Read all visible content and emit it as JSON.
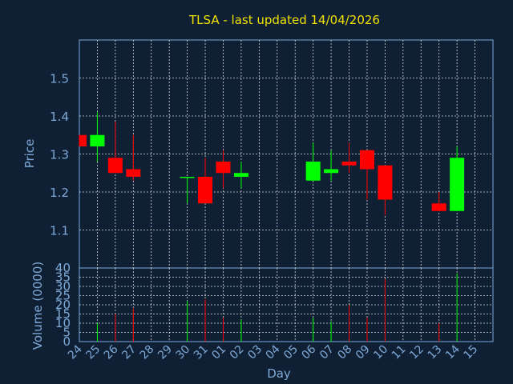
{
  "chart_data": {
    "type": "candlestick",
    "title": "TLSA - last updated 14/04/2026",
    "xlabel": "Day",
    "price_panel": {
      "ylabel": "Price",
      "ylim": [
        1.0,
        1.6
      ],
      "yticks": [
        "1.1",
        "1.2",
        "1.3",
        "1.4",
        "1.5"
      ]
    },
    "volume_panel": {
      "ylabel": "Volume (0000)",
      "ylim": [
        0,
        40
      ],
      "yticks": [
        "0",
        "5",
        "10",
        "15",
        "20",
        "25",
        "30",
        "35",
        "40"
      ]
    },
    "x_ticks": [
      "24",
      "25",
      "26",
      "27",
      "28",
      "29",
      "30",
      "31",
      "01",
      "02",
      "03",
      "04",
      "05",
      "06",
      "07",
      "08",
      "09",
      "10",
      "11",
      "12",
      "13",
      "14",
      "15"
    ],
    "grid": true,
    "colors": {
      "up": "#00ff00",
      "down": "#ff0000",
      "background": "#0f2035",
      "title": "#f0e000",
      "axis_text": "#7ea9d6",
      "grid": "#d8d8d8"
    },
    "candles": [
      {
        "day": "24",
        "open": 1.35,
        "high": 1.35,
        "low": 1.32,
        "close": 1.32,
        "volume": 0
      },
      {
        "day": "25",
        "open": 1.32,
        "high": 1.41,
        "low": 1.28,
        "close": 1.35,
        "volume": 10
      },
      {
        "day": "26",
        "open": 1.29,
        "high": 1.385,
        "low": 1.25,
        "close": 1.25,
        "volume": 15
      },
      {
        "day": "27",
        "open": 1.26,
        "high": 1.35,
        "low": 1.23,
        "close": 1.24,
        "volume": 18
      },
      {
        "day": "30",
        "open": 1.24,
        "high": 1.24,
        "low": 1.17,
        "close": 1.24,
        "volume": 22
      },
      {
        "day": "31",
        "open": 1.24,
        "high": 1.29,
        "low": 1.17,
        "close": 1.17,
        "volume": 23
      },
      {
        "day": "01",
        "open": 1.28,
        "high": 1.31,
        "low": 1.21,
        "close": 1.25,
        "volume": 13
      },
      {
        "day": "02",
        "open": 1.24,
        "high": 1.28,
        "low": 1.21,
        "close": 1.25,
        "volume": 12
      },
      {
        "day": "06",
        "open": 1.23,
        "high": 1.33,
        "low": 1.23,
        "close": 1.28,
        "volume": 13
      },
      {
        "day": "07",
        "open": 1.25,
        "high": 1.31,
        "low": 1.23,
        "close": 1.26,
        "volume": 11
      },
      {
        "day": "08",
        "open": 1.28,
        "high": 1.33,
        "low": 1.25,
        "close": 1.27,
        "volume": 20
      },
      {
        "day": "09",
        "open": 1.31,
        "high": 1.31,
        "low": 1.18,
        "close": 1.26,
        "volume": 13
      },
      {
        "day": "10",
        "open": 1.27,
        "high": 1.27,
        "low": 1.14,
        "close": 1.18,
        "volume": 34
      },
      {
        "day": "13",
        "open": 1.17,
        "high": 1.2,
        "low": 1.15,
        "close": 1.15,
        "volume": 10
      },
      {
        "day": "14",
        "open": 1.15,
        "high": 1.32,
        "low": 1.15,
        "close": 1.29,
        "volume": 37
      }
    ]
  }
}
